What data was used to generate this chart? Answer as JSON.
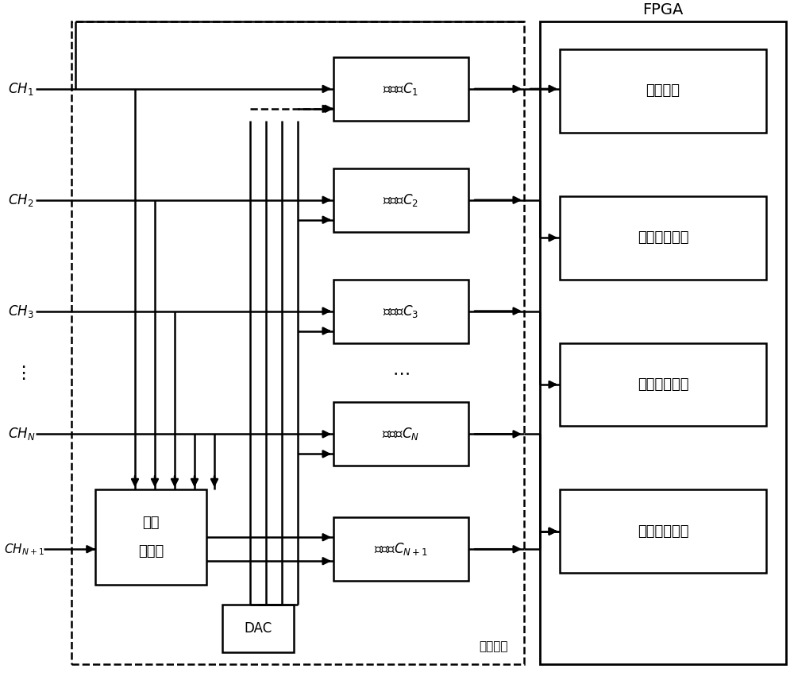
{
  "figsize": [
    10.0,
    8.71
  ],
  "dpi": 100,
  "fpga_label": "FPGA",
  "fpga_modules": [
    "触发模块",
    "协议分析模块",
    "波形搜索模块",
    "频率测量模块"
  ],
  "comp_texts": [
    "比较器$C_1$",
    "比较器$C_2$",
    "比较器$C_3$",
    "比较器$C_N$",
    "比较器$C_{N+1}$"
  ],
  "mux_lines": [
    "多路",
    "选择器"
  ],
  "dac_label": "DAC",
  "ch_module_label": "通道模块",
  "ch_labels": [
    "$CH_1$",
    "$CH_2$",
    "$CH_3$",
    "$CH_N$",
    "$CH_{N+1}$"
  ],
  "dots_label": "$\\cdots$",
  "lw": 1.8,
  "font_size_main": 12,
  "font_size_ch": 12,
  "font_size_fpga": 14
}
